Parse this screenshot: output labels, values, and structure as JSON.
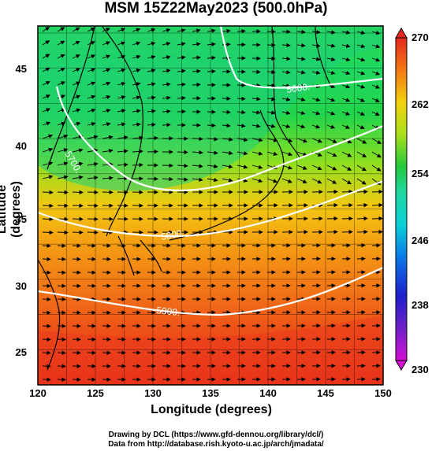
{
  "title": "MSM 15Z22May2023 (500.0hPa)",
  "x_axis": {
    "label": "Longitude (degrees)",
    "ticks": [
      "120",
      "125",
      "130",
      "135",
      "140",
      "145",
      "150"
    ],
    "range": [
      120,
      150
    ]
  },
  "y_axis": {
    "label": "Latitude  (degrees)",
    "ticks": [
      "25",
      "30",
      "35",
      "40",
      "45"
    ],
    "range": [
      22.5,
      48
    ]
  },
  "colorbar": {
    "ticks": [
      "230",
      "238",
      "246",
      "254",
      "262",
      "270"
    ],
    "range": [
      230,
      270
    ],
    "colors": [
      "#d40fd4",
      "#1e1ecc",
      "#0aa0e6",
      "#1ed8a8",
      "#22c83c",
      "#b8e814",
      "#f2d20e",
      "#f27814",
      "#e6281e"
    ]
  },
  "contours": [
    {
      "label": "5600.",
      "lat_approx": 44.5
    },
    {
      "label": "5700.",
      "lat_approx": 39.8
    },
    {
      "label": "5800.",
      "lat_approx": 33.5
    },
    {
      "label": "5900.",
      "lat_approx": 28.0
    }
  ],
  "credits": {
    "line1": "Drawing by DCL (https://www.gfd-dennou.org/library/dcl/)",
    "line2": "Data from http://database.rish.kyoto-u.ac.jp/arch/jmadata/"
  }
}
